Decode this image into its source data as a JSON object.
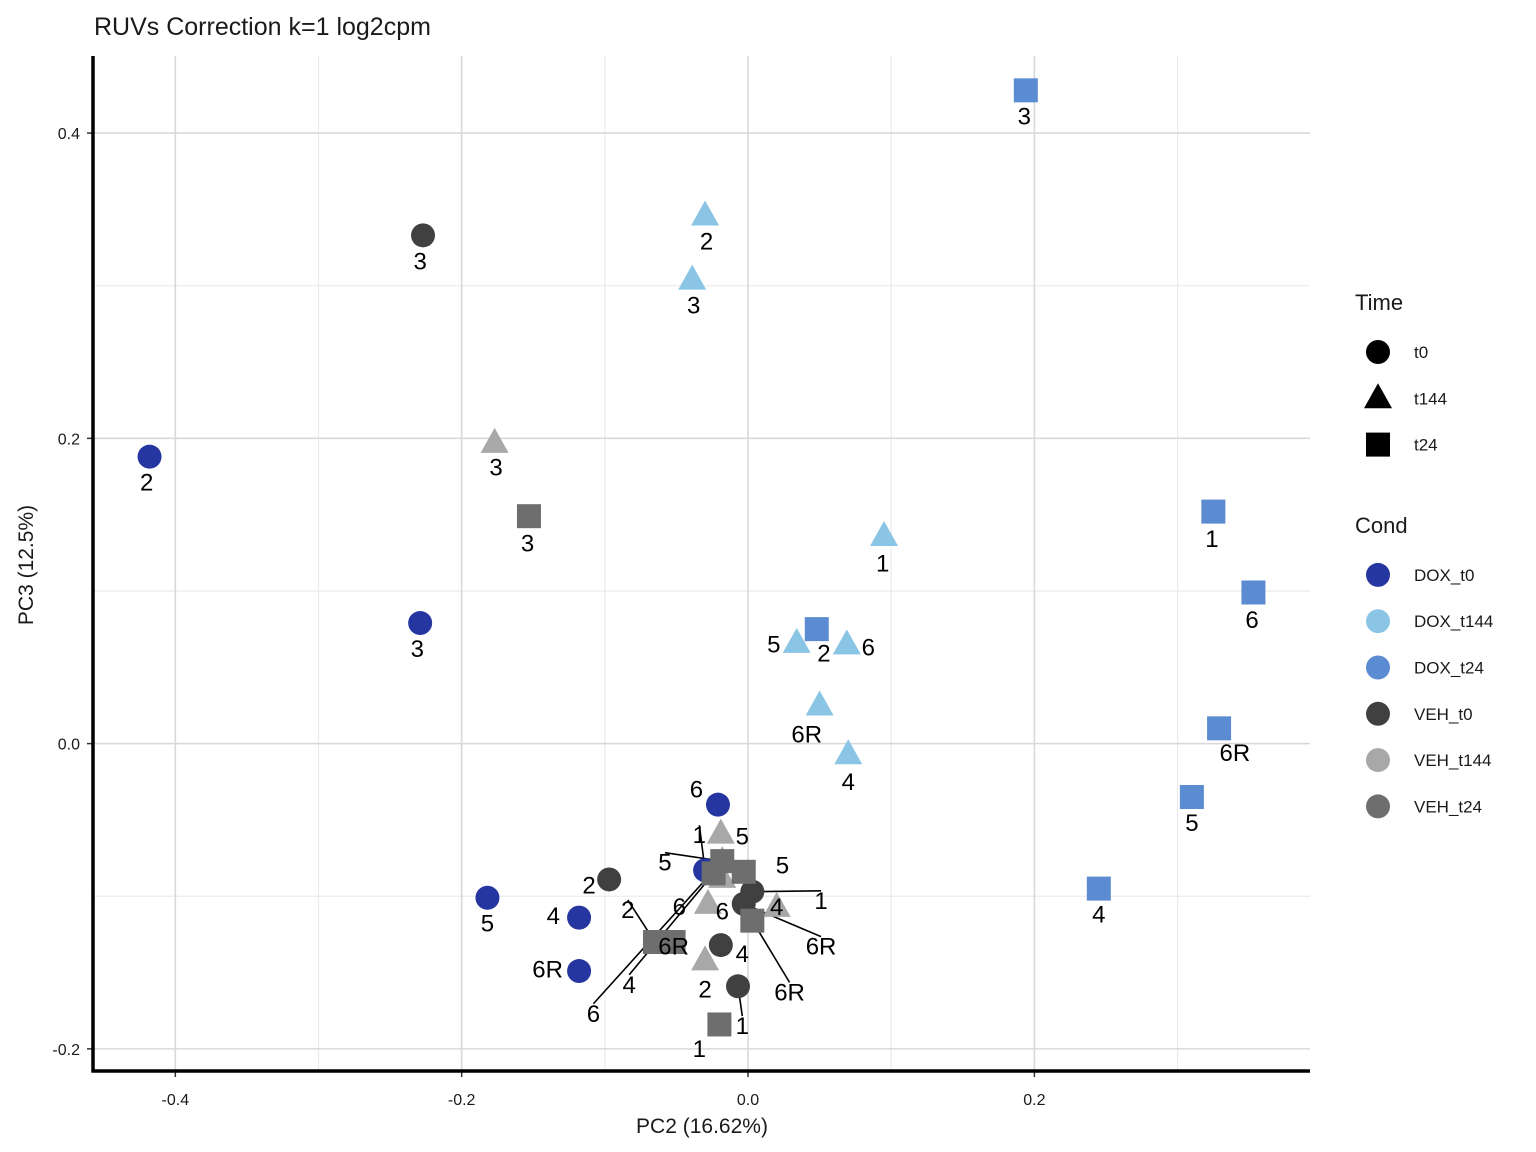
{
  "chart_data": {
    "type": "scatter",
    "title": "RUVs Correction k=1 log2cpm",
    "xlabel": "PC2 (16.62%)",
    "ylabel": "PC3 (12.5%)",
    "xlim": [
      -0.4575,
      0.3925
    ],
    "ylim": [
      -0.2145,
      0.4505
    ],
    "xticks": [
      -0.4,
      -0.2,
      0.0,
      0.2
    ],
    "xtick_labels": [
      "-0.4",
      "-0.2",
      "0.0",
      "0.2"
    ],
    "yticks": [
      -0.2,
      0.0,
      0.2,
      0.4
    ],
    "ytick_labels": [
      "-0.2",
      "0.0",
      "0.2",
      "0.4"
    ],
    "grid": true,
    "legend_position": "right",
    "legends": [
      {
        "title": "Time",
        "items": [
          {
            "label": "t0",
            "shape": "circle"
          },
          {
            "label": "t144",
            "shape": "triangle"
          },
          {
            "label": "t24",
            "shape": "square"
          }
        ]
      },
      {
        "title": "Cond",
        "items": [
          {
            "label": "DOX_t0",
            "color": "#2536A0"
          },
          {
            "label": "DOX_t144",
            "color": "#8BC5E5"
          },
          {
            "label": "DOX_t24",
            "color": "#5B8BD0"
          },
          {
            "label": "VEH_t0",
            "color": "#404040"
          },
          {
            "label": "VEH_t144",
            "color": "#A8A8A8"
          },
          {
            "label": "VEH_t24",
            "color": "#6E6E6E"
          }
        ]
      }
    ],
    "colors": {
      "DOX_t0": "#2536A0",
      "DOX_t144": "#8BC5E5",
      "DOX_t24": "#5B8BD0",
      "VEH_t0": "#404040",
      "VEH_t144": "#A8A8A8",
      "VEH_t24": "#6E6E6E"
    },
    "points": [
      {
        "cond": "DOX_t0",
        "shape": "circle",
        "x": -0.418,
        "y": 0.188,
        "label": "2",
        "lx": -0.42,
        "ly": 0.171
      },
      {
        "cond": "DOX_t0",
        "shape": "circle",
        "x": -0.229,
        "y": 0.079,
        "label": "3",
        "lx": -0.231,
        "ly": 0.062
      },
      {
        "cond": "DOX_t0",
        "shape": "circle",
        "x": -0.182,
        "y": -0.101,
        "label": "5",
        "lx": -0.182,
        "ly": -0.118
      },
      {
        "cond": "DOX_t0",
        "shape": "circle",
        "x": -0.118,
        "y": -0.114,
        "label": "4",
        "lx": -0.136,
        "ly": -0.113
      },
      {
        "cond": "DOX_t0",
        "shape": "circle",
        "x": -0.118,
        "y": -0.149,
        "label": "6R",
        "lx": -0.14,
        "ly": -0.148
      },
      {
        "cond": "DOX_t0",
        "shape": "circle",
        "x": -0.021,
        "y": -0.04,
        "label": "6",
        "lx": -0.036,
        "ly": -0.03
      },
      {
        "cond": "DOX_t0",
        "shape": "circle",
        "x": -0.03,
        "y": -0.083,
        "label": "1",
        "lx": -0.034,
        "ly": -0.06,
        "leader": true
      },
      {
        "cond": "DOX_t144",
        "shape": "triangle",
        "x": -0.03,
        "y": 0.346,
        "label": "2",
        "lx": -0.029,
        "ly": 0.329
      },
      {
        "cond": "DOX_t144",
        "shape": "triangle",
        "x": -0.039,
        "y": 0.304,
        "label": "3",
        "lx": -0.038,
        "ly": 0.287
      },
      {
        "cond": "DOX_t144",
        "shape": "triangle",
        "x": 0.095,
        "y": 0.136,
        "label": "1",
        "lx": 0.094,
        "ly": 0.118
      },
      {
        "cond": "DOX_t144",
        "shape": "triangle",
        "x": 0.034,
        "y": 0.066,
        "label": "5",
        "lx": 0.018,
        "ly": 0.065
      },
      {
        "cond": "DOX_t144",
        "shape": "triangle",
        "x": 0.069,
        "y": 0.065,
        "label": "6",
        "lx": 0.084,
        "ly": 0.063
      },
      {
        "cond": "DOX_t144",
        "shape": "triangle",
        "x": 0.05,
        "y": 0.025,
        "label": "6R",
        "lx": 0.041,
        "ly": 0.006
      },
      {
        "cond": "DOX_t144",
        "shape": "triangle",
        "x": 0.07,
        "y": -0.007,
        "label": "4",
        "lx": 0.07,
        "ly": -0.025
      },
      {
        "cond": "DOX_t24",
        "shape": "square",
        "x": 0.194,
        "y": 0.428,
        "label": "3",
        "lx": 0.193,
        "ly": 0.411
      },
      {
        "cond": "DOX_t24",
        "shape": "square",
        "x": 0.325,
        "y": 0.152,
        "label": "1",
        "lx": 0.324,
        "ly": 0.134
      },
      {
        "cond": "DOX_t24",
        "shape": "square",
        "x": 0.353,
        "y": 0.099,
        "label": "6",
        "lx": 0.352,
        "ly": 0.081
      },
      {
        "cond": "DOX_t24",
        "shape": "square",
        "x": 0.329,
        "y": 0.01,
        "label": "6R",
        "lx": 0.34,
        "ly": -0.006
      },
      {
        "cond": "DOX_t24",
        "shape": "square",
        "x": 0.31,
        "y": -0.035,
        "label": "5",
        "lx": 0.31,
        "ly": -0.052
      },
      {
        "cond": "DOX_t24",
        "shape": "square",
        "x": 0.245,
        "y": -0.095,
        "label": "4",
        "lx": 0.245,
        "ly": -0.112
      },
      {
        "cond": "DOX_t24",
        "shape": "square",
        "x": 0.048,
        "y": 0.075,
        "label": "2",
        "lx": 0.053,
        "ly": 0.059
      },
      {
        "cond": "VEH_t0",
        "shape": "circle",
        "x": -0.227,
        "y": 0.333,
        "label": "3",
        "lx": -0.229,
        "ly": 0.316
      },
      {
        "cond": "VEH_t0",
        "shape": "circle",
        "x": -0.097,
        "y": -0.089,
        "label": "2",
        "lx": -0.111,
        "ly": -0.093
      },
      {
        "cond": "VEH_t0",
        "shape": "circle",
        "x": 0.003,
        "y": -0.097,
        "label": "1",
        "lx": 0.051,
        "ly": -0.103,
        "leader": true
      },
      {
        "cond": "VEH_t0",
        "shape": "circle",
        "x": -0.003,
        "y": -0.105,
        "label": "6R",
        "lx": 0.051,
        "ly": -0.133,
        "leader": true
      },
      {
        "cond": "VEH_t0",
        "shape": "circle",
        "x": -0.019,
        "y": -0.132,
        "label": "4",
        "lx": -0.004,
        "ly": -0.138
      },
      {
        "cond": "VEH_t0",
        "shape": "circle",
        "x": -0.007,
        "y": -0.159,
        "label": "1",
        "lx": -0.004,
        "ly": -0.185,
        "leader": true
      },
      {
        "cond": "VEH_t144",
        "shape": "triangle",
        "x": -0.177,
        "y": 0.197,
        "label": "3",
        "lx": -0.176,
        "ly": 0.181
      },
      {
        "cond": "VEH_t144",
        "shape": "triangle",
        "x": -0.019,
        "y": -0.059,
        "label": "5",
        "lx": -0.004,
        "ly": -0.061
      },
      {
        "cond": "VEH_t144",
        "shape": "triangle",
        "x": -0.018,
        "y": -0.077,
        "label": "5",
        "lx": -0.058,
        "ly": -0.078,
        "leader": true
      },
      {
        "cond": "VEH_t144",
        "shape": "triangle",
        "x": -0.028,
        "y": -0.105,
        "label": "6",
        "lx": -0.048,
        "ly": -0.107
      },
      {
        "cond": "VEH_t144",
        "shape": "triangle",
        "x": -0.018,
        "y": -0.088,
        "label": "6",
        "lx": -0.018,
        "ly": -0.11
      },
      {
        "cond": "VEH_t144",
        "shape": "triangle",
        "x": -0.03,
        "y": -0.142,
        "label": "2",
        "lx": -0.03,
        "ly": -0.161
      },
      {
        "cond": "VEH_t144",
        "shape": "triangle",
        "x": 0.02,
        "y": -0.107,
        "label": "4",
        "lx": 0.02,
        "ly": -0.107
      },
      {
        "cond": "VEH_t24",
        "shape": "square",
        "x": -0.153,
        "y": 0.149,
        "label": "3",
        "lx": -0.154,
        "ly": 0.131
      },
      {
        "cond": "VEH_t24",
        "shape": "square",
        "x": -0.003,
        "y": -0.084,
        "label": "5",
        "lx": 0.024,
        "ly": -0.08
      },
      {
        "cond": "VEH_t24",
        "shape": "square",
        "x": -0.065,
        "y": -0.13,
        "label": "2",
        "lx": -0.084,
        "ly": -0.109,
        "leader": true
      },
      {
        "cond": "VEH_t24",
        "shape": "square",
        "x": -0.052,
        "y": -0.13,
        "label": "6R",
        "lx": -0.052,
        "ly": -0.133
      },
      {
        "cond": "VEH_t24",
        "shape": "square",
        "x": 0.003,
        "y": -0.116,
        "label": "6R",
        "lx": 0.029,
        "ly": -0.163,
        "leader": true
      },
      {
        "cond": "VEH_t24",
        "shape": "square",
        "x": -0.02,
        "y": -0.184,
        "label": "1",
        "lx": -0.034,
        "ly": -0.2
      },
      {
        "cond": "VEH_t24",
        "shape": "square",
        "x": -0.024,
        "y": -0.085,
        "label": "4",
        "lx": -0.083,
        "ly": -0.158,
        "leader": true
      },
      {
        "cond": "VEH_t24",
        "shape": "square",
        "x": -0.018,
        "y": -0.077,
        "label": "6",
        "lx": -0.108,
        "ly": -0.177,
        "leader": true
      }
    ]
  }
}
